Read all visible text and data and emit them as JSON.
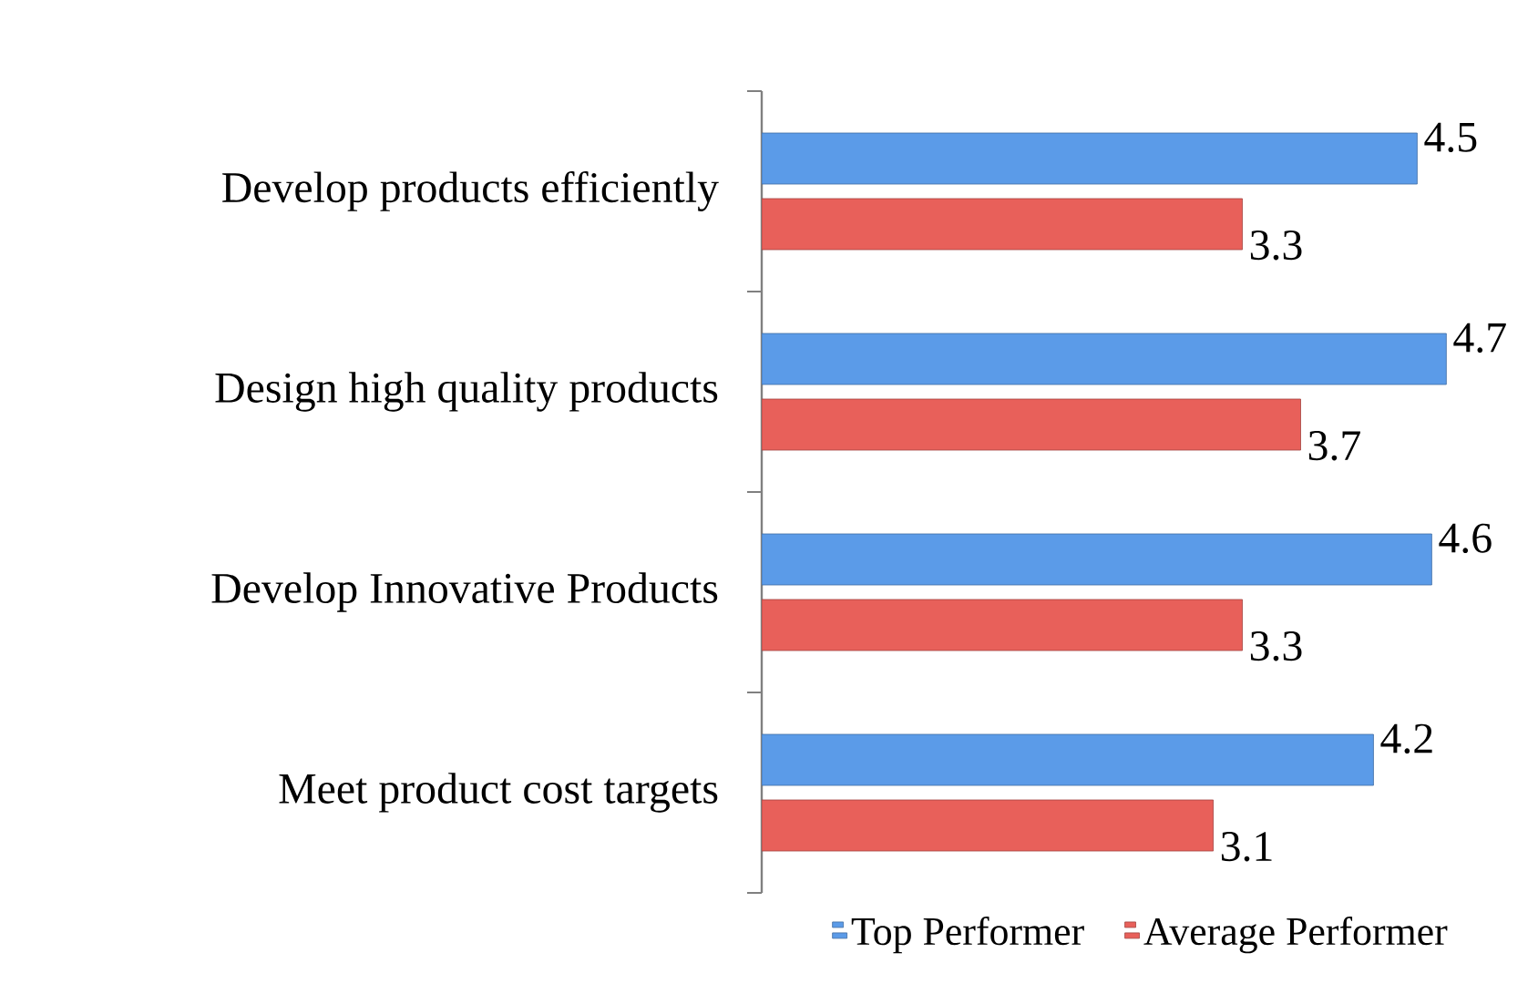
{
  "chart_data": {
    "type": "bar",
    "orientation": "horizontal",
    "categories": [
      "Develop products efficiently",
      "Design high quality products",
      "Develop Innovative Products",
      "Meet product cost targets"
    ],
    "series": [
      {
        "name": "Top Performer",
        "color": "#5b9be8",
        "values": [
          4.5,
          4.7,
          4.6,
          4.2
        ]
      },
      {
        "name": "Average Performer",
        "color": "#e8605a",
        "values": [
          3.3,
          3.7,
          3.3,
          3.1
        ]
      }
    ],
    "data_labels": true,
    "legend": "bottom",
    "tick_labels": "y"
  }
}
